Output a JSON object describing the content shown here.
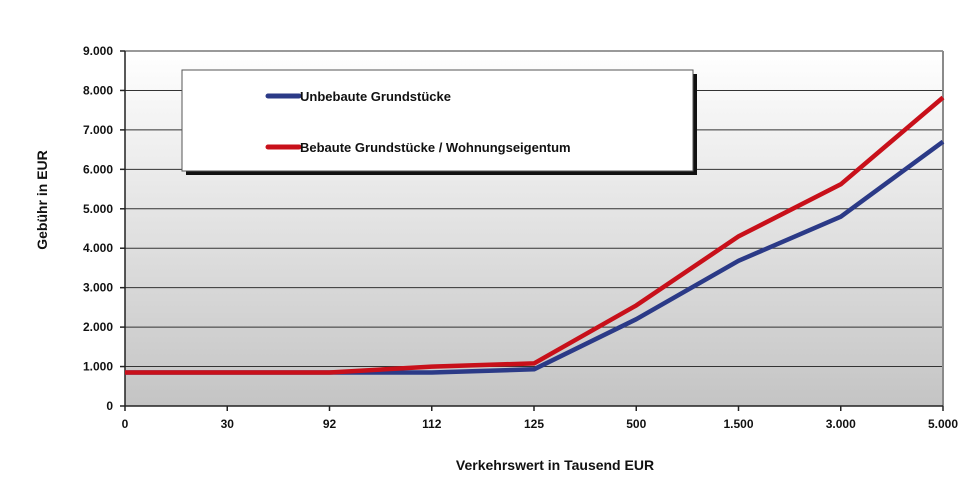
{
  "chart_data": {
    "type": "line",
    "title": "",
    "xlabel": "Verkehrswert in Tausend EUR",
    "ylabel": "Gebühr in EUR",
    "categories": [
      "0",
      "30",
      "92",
      "112",
      "125",
      "500",
      "1.500",
      "3.000",
      "5.000"
    ],
    "y_ticks": [
      "0",
      "1.000",
      "2.000",
      "3.000",
      "4.000",
      "5.000",
      "6.000",
      "7.000",
      "8.000",
      "9.000"
    ],
    "ylim": [
      0,
      9000
    ],
    "grid": true,
    "legend_position": "top-left inside plot",
    "series": [
      {
        "name": "Unbebaute Grundstücke",
        "color": "#2B3A87",
        "values": [
          850,
          850,
          850,
          850,
          930,
          2200,
          3680,
          4800,
          6700
        ]
      },
      {
        "name": "Bebaute Grundstücke / Wohnungseigentum",
        "color": "#C8101A",
        "values": [
          850,
          850,
          850,
          1000,
          1080,
          2550,
          4300,
          5620,
          7820
        ]
      }
    ]
  }
}
